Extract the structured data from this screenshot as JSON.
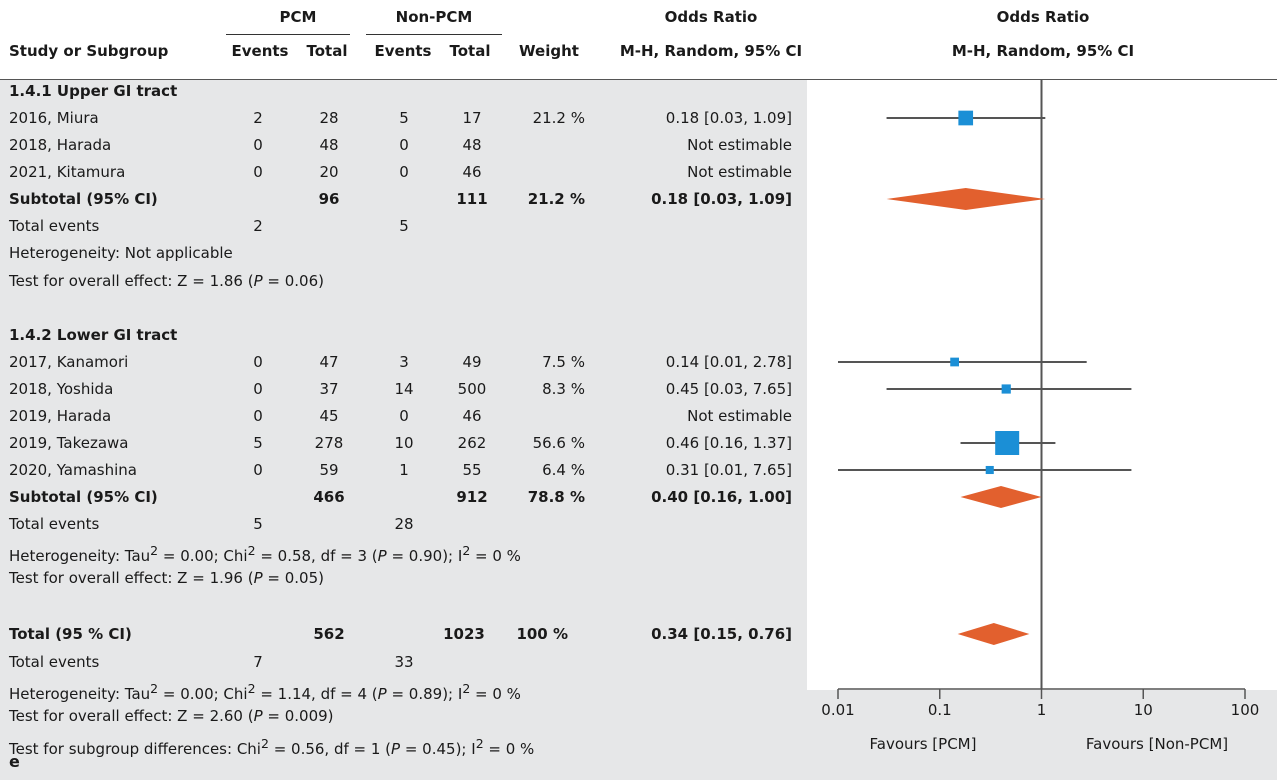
{
  "header": {
    "group1": "PCM",
    "group2": "Non-PCM",
    "or_table": "Odds Ratio",
    "or_table_method": "M-H, Random, 95% CI",
    "or_plot": "Odds Ratio",
    "or_plot_method": "M-H, Random, 95% CI",
    "study": "Study or Subgroup",
    "events1": "Events",
    "total1": "Total",
    "events2": "Events",
    "total2": "Total",
    "weight": "Weight"
  },
  "subgroups": [
    {
      "title": "1.4.1 Upper GI tract",
      "studies": [
        {
          "name": "2016, Miura",
          "e1": "2",
          "t1": "28",
          "e2": "5",
          "t2": "17",
          "weight": "21.2 %",
          "ci_text": "0.18 [0.03, 1.09]"
        },
        {
          "name": "2018, Harada",
          "e1": "0",
          "t1": "48",
          "e2": "0",
          "t2": "48",
          "weight": "",
          "ci_text": "Not estimable"
        },
        {
          "name": "2021, Kitamura",
          "e1": "0",
          "t1": "20",
          "e2": "0",
          "t2": "46",
          "weight": "",
          "ci_text": "Not estimable"
        }
      ],
      "subtotal": {
        "label": "Subtotal (95% CI)",
        "t1": "96",
        "t2": "111",
        "weight": "21.2 %",
        "ci_text": "0.18 [0.03, 1.09]"
      },
      "total_events": {
        "label": "Total events",
        "e1": "2",
        "e2": "5"
      },
      "heterogeneity": "Heterogeneity: Not applicable",
      "overall_effect": {
        "pre": "Test for overall effect: Z = 1.86 (",
        "p": "P",
        "post": " = 0.06)"
      }
    },
    {
      "title": "1.4.2 Lower GI tract",
      "studies": [
        {
          "name": "2017, Kanamori",
          "e1": "0",
          "t1": "47",
          "e2": "3",
          "t2": "49",
          "weight": "7.5 %",
          "ci_text": "0.14 [0.01, 2.78]"
        },
        {
          "name": "2018, Yoshida",
          "e1": "0",
          "t1": "37",
          "e2": "14",
          "t2": "500",
          "weight": "8.3 %",
          "ci_text": "0.45 [0.03, 7.65]"
        },
        {
          "name": "2019, Harada",
          "e1": "0",
          "t1": "45",
          "e2": "0",
          "t2": "46",
          "weight": "",
          "ci_text": "Not estimable"
        },
        {
          "name": "2019, Takezawa",
          "e1": "5",
          "t1": "278",
          "e2": "10",
          "t2": "262",
          "weight": "56.6 %",
          "ci_text": "0.46 [0.16, 1.37]"
        },
        {
          "name": "2020, Yamashina",
          "e1": "0",
          "t1": "59",
          "e2": "1",
          "t2": "55",
          "weight": "6.4 %",
          "ci_text": "0.31 [0.01, 7.65]"
        }
      ],
      "subtotal": {
        "label": "Subtotal (95% CI)",
        "t1": "466",
        "t2": "912",
        "weight": "78.8 %",
        "ci_text": "0.40 [0.16, 1.00]"
      },
      "total_events": {
        "label": "Total events",
        "e1": "5",
        "e2": "28"
      },
      "heterogeneity": {
        "pre": "Heterogeneity: Tau",
        "sup1": "2",
        "mid1": " = 0.00; Chi",
        "sup2": "2",
        "mid2": " = 0.58, df = 3 (",
        "p": "P",
        "mid3": " = 0.90); I",
        "sup3": "2",
        "post": " = 0 %"
      },
      "overall_effect": {
        "pre": "Test for overall effect: Z = 1.96 (",
        "p": "P",
        "post": " = 0.05)"
      }
    }
  ],
  "total": {
    "label": "Total (95 % CI)",
    "t1": "562",
    "t2": "1023",
    "weight": "100 %",
    "ci_text": "0.34 [0.15, 0.76]",
    "total_events": {
      "label": "Total events",
      "e1": "7",
      "e2": "33"
    },
    "heterogeneity": {
      "pre": "Heterogeneity: Tau",
      "sup1": "2",
      "mid1": " = 0.00; Chi",
      "sup2": "2",
      "mid2": " = 1.14, df = 4 (",
      "p": "P",
      "mid3": " = 0.89); I",
      "sup3": "2",
      "post": " = 0 %"
    },
    "overall_effect": {
      "pre": "Test for overall effect: Z = 2.60 (",
      "p": "P",
      "post": " = 0.009)"
    },
    "subgroup_diff": {
      "pre": "Test for subgroup differences: Chi",
      "sup1": "2",
      "mid1": " = 0.56, df = 1 (",
      "p": "P",
      "mid2": " = 0.45); I",
      "sup2": "2",
      "post": " = 0 %"
    }
  },
  "favours": {
    "left": "Favours [PCM]",
    "right": "Favours [Non-PCM]"
  },
  "figure_letter": "e",
  "colors": {
    "square": "#1b8fd6",
    "diamond": "#e2602e",
    "line": "#555555",
    "background": "#e6e7e8",
    "plot_background": "#ffffff"
  },
  "chart_data": {
    "type": "forest",
    "x_scale": "log",
    "xlim": [
      0.01,
      100
    ],
    "x_ticks": [
      0.01,
      0.1,
      1,
      10,
      100
    ],
    "x_tick_labels": [
      "0.01",
      "0.1",
      "1",
      "10",
      "100"
    ],
    "reference_line": 1,
    "studies": [
      {
        "name": "2016, Miura",
        "or": 0.18,
        "lo": 0.03,
        "hi": 1.09,
        "weight": 21.2
      },
      {
        "name": "2018, Harada",
        "or": null,
        "lo": null,
        "hi": null,
        "weight": 0
      },
      {
        "name": "2021, Kitamura",
        "or": null,
        "lo": null,
        "hi": null,
        "weight": 0
      },
      {
        "name": "2017, Kanamori",
        "or": 0.14,
        "lo": 0.01,
        "hi": 2.78,
        "weight": 7.5
      },
      {
        "name": "2018, Yoshida",
        "or": 0.45,
        "lo": 0.03,
        "hi": 7.65,
        "weight": 8.3
      },
      {
        "name": "2019, Harada",
        "or": null,
        "lo": null,
        "hi": null,
        "weight": 0
      },
      {
        "name": "2019, Takezawa",
        "or": 0.46,
        "lo": 0.16,
        "hi": 1.37,
        "weight": 56.6
      },
      {
        "name": "2020, Yamashina",
        "or": 0.31,
        "lo": 0.01,
        "hi": 7.65,
        "weight": 6.4
      }
    ],
    "pooled": [
      {
        "name": "Subtotal 1.4.1",
        "or": 0.18,
        "lo": 0.03,
        "hi": 1.09
      },
      {
        "name": "Subtotal 1.4.2",
        "or": 0.4,
        "lo": 0.16,
        "hi": 1.0
      },
      {
        "name": "Total",
        "or": 0.34,
        "lo": 0.15,
        "hi": 0.76
      }
    ]
  }
}
